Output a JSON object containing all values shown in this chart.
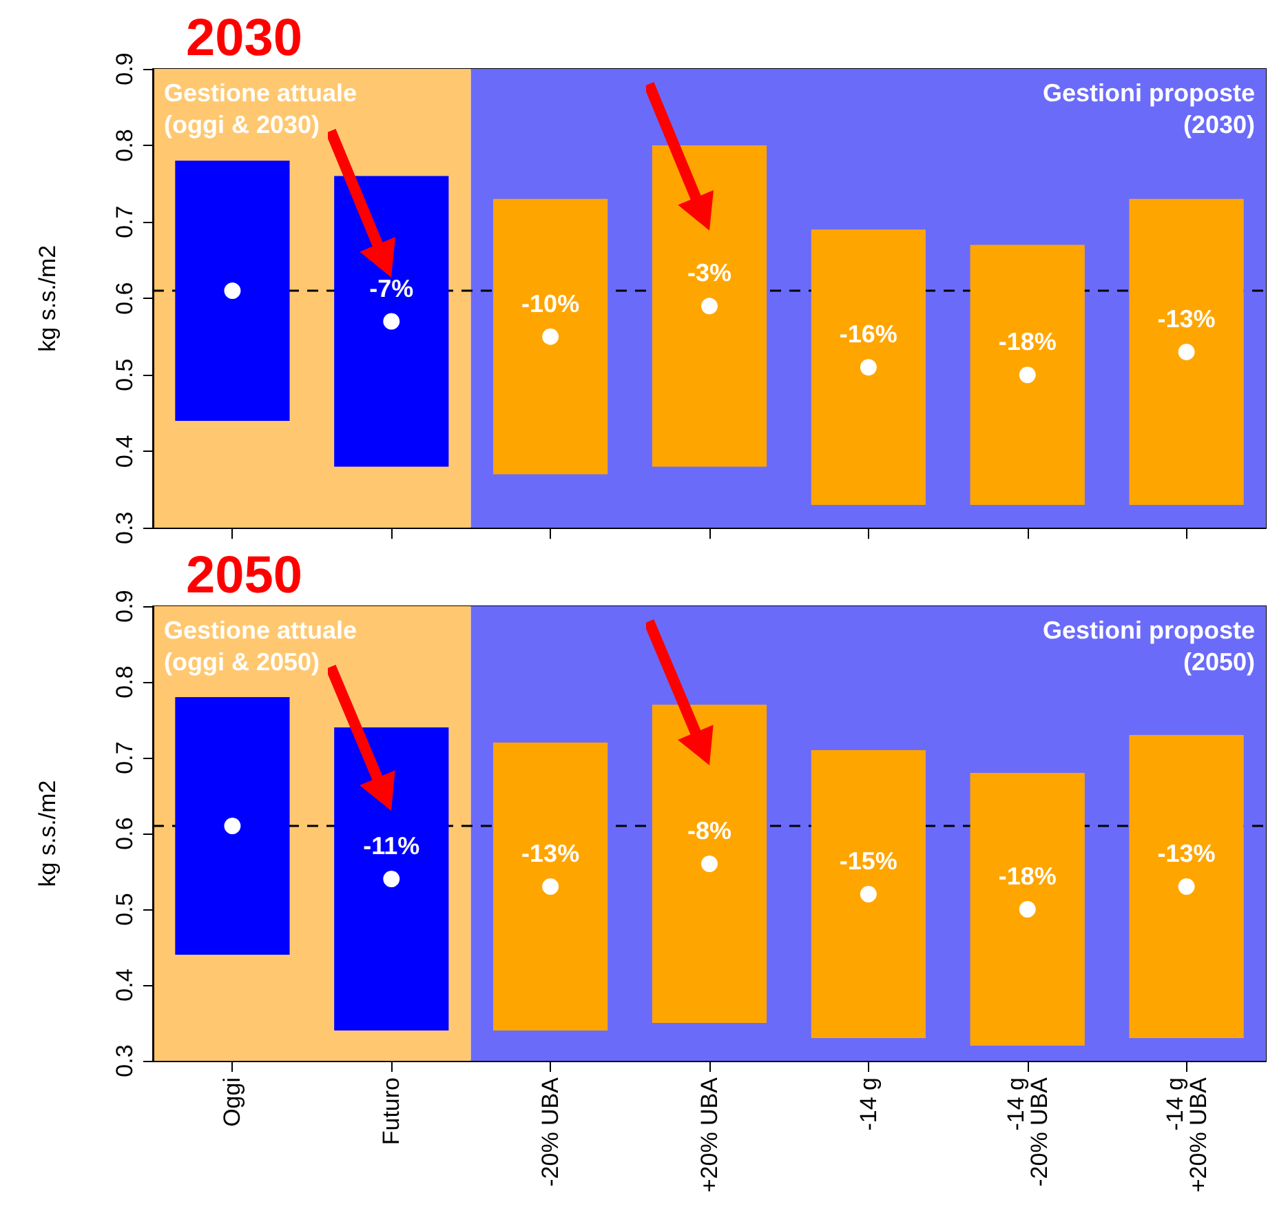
{
  "chart_data": [
    {
      "type": "bar",
      "title": "2030",
      "ylabel": "kg s.s./m2",
      "categories": [
        "Oggi",
        "Futuro",
        "-20% UBA",
        "+20% UBA",
        "-14 g",
        "-14 g\n-20% UBA",
        "-14 g\n+20% UBA"
      ],
      "ylim": [
        0.3,
        0.9
      ],
      "yticks": [
        0.3,
        0.4,
        0.5,
        0.6,
        0.7,
        0.8,
        0.9
      ],
      "tick_labels": "y",
      "grid": false,
      "marker": "circle",
      "series": [
        {
          "colors": [
            "#0000ff",
            "#0000ff",
            "#ffa500",
            "#ffa500",
            "#ffa500",
            "#ffa500",
            "#ffa500"
          ],
          "base": [
            0.44,
            0.38,
            0.37,
            0.38,
            0.33,
            0.33,
            0.33
          ],
          "values": [
            0.34,
            0.38,
            0.36,
            0.42,
            0.36,
            0.34,
            0.4
          ]
        },
        {
          "type": "scatter",
          "color": "#ffffff",
          "x": [
            "Oggi",
            "Futuro",
            "-20% UBA",
            "+20% UBA",
            "-14 g",
            "-14 g\n-20% UBA",
            "-14 g\n+20% UBA"
          ],
          "values": [
            0.61,
            0.57,
            0.55,
            0.59,
            0.51,
            0.5,
            0.53
          ]
        }
      ],
      "annotations": [
        {
          "text": "-7%",
          "x": "Futuro",
          "y": 0.57
        },
        {
          "text": "-10%",
          "x": "-20% UBA",
          "y": 0.55
        },
        {
          "text": "-3%",
          "x": "+20% UBA",
          "y": 0.59
        },
        {
          "text": "-16%",
          "x": "-14 g",
          "y": 0.51
        },
        {
          "text": "-18%",
          "x": "-14 g\n-20% UBA",
          "y": 0.5
        },
        {
          "text": "-13%",
          "x": "-14 g\n+20% UBA",
          "y": 0.53
        }
      ],
      "ref_lines": [
        {
          "axis": "y",
          "value": 0.61,
          "label": null,
          "color": "#000000",
          "line_style": "dashed"
        }
      ],
      "bands": [
        {
          "axis": "x",
          "from": "Oggi",
          "to": "Futuro",
          "label": "Gestione attuale\n(oggi & 2030)",
          "color": "#ffc870"
        },
        {
          "axis": "x",
          "from": "-20% UBA",
          "to": "-14 g\n+20% UBA",
          "label": "Gestioni proposte\n(2030)",
          "color": "#6b6bfa"
        }
      ]
    },
    {
      "type": "bar",
      "title": "2050",
      "ylabel": "kg s.s./m2",
      "categories": [
        "Oggi",
        "Futuro",
        "-20% UBA",
        "+20% UBA",
        "-14 g",
        "-14 g\n-20% UBA",
        "-14 g\n+20% UBA"
      ],
      "ylim": [
        0.3,
        0.9
      ],
      "yticks": [
        0.3,
        0.4,
        0.5,
        0.6,
        0.7,
        0.8,
        0.9
      ],
      "grid": false,
      "marker": "circle",
      "series": [
        {
          "colors": [
            "#0000ff",
            "#0000ff",
            "#ffa500",
            "#ffa500",
            "#ffa500",
            "#ffa500",
            "#ffa500"
          ],
          "base": [
            0.44,
            0.34,
            0.34,
            0.35,
            0.33,
            0.32,
            0.33
          ],
          "values": [
            0.34,
            0.4,
            0.38,
            0.42,
            0.38,
            0.36,
            0.4
          ]
        },
        {
          "type": "scatter",
          "color": "#ffffff",
          "x": [
            "Oggi",
            "Futuro",
            "-20% UBA",
            "+20% UBA",
            "-14 g",
            "-14 g\n-20% UBA",
            "-14 g\n+20% UBA"
          ],
          "values": [
            0.61,
            0.54,
            0.53,
            0.56,
            0.52,
            0.5,
            0.53
          ]
        }
      ],
      "annotations": [
        {
          "text": "-11%",
          "x": "Futuro",
          "y": 0.54
        },
        {
          "text": "-13%",
          "x": "-20% UBA",
          "y": 0.53
        },
        {
          "text": "-8%",
          "x": "+20% UBA",
          "y": 0.56
        },
        {
          "text": "-15%",
          "x": "-14 g",
          "y": 0.52
        },
        {
          "text": "-18%",
          "x": "-14 g\n-20% UBA",
          "y": 0.5
        },
        {
          "text": "-13%",
          "x": "-14 g\n+20% UBA",
          "y": 0.53
        }
      ],
      "ref_lines": [
        {
          "axis": "y",
          "value": 0.61,
          "label": null,
          "color": "#000000",
          "line_style": "dashed"
        }
      ],
      "bands": [
        {
          "axis": "x",
          "from": "Oggi",
          "to": "Futuro",
          "label": "Gestione attuale\n(oggi & 2050)",
          "color": "#ffc870"
        },
        {
          "axis": "x",
          "from": "-20% UBA",
          "to": "-14 g\n+20% UBA",
          "label": "Gestioni proposte\n(2050)",
          "color": "#6b6bfa"
        }
      ]
    }
  ]
}
